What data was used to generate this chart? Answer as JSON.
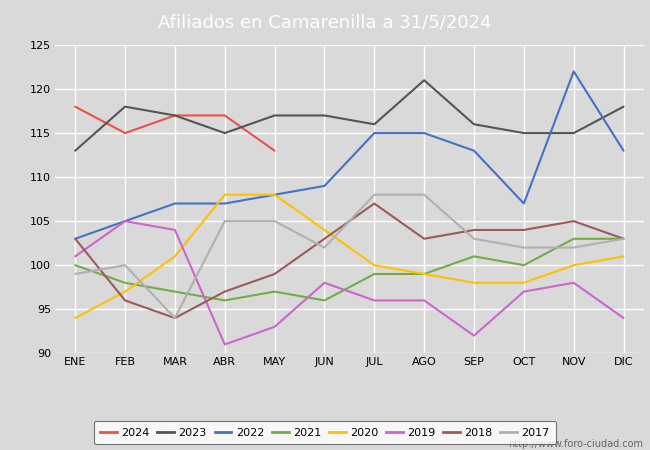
{
  "title": "Afiliados en Camarenilla a 31/5/2024",
  "title_bg_color": "#4d7ebf",
  "title_text_color": "white",
  "ylim": [
    90,
    125
  ],
  "yticks": [
    90,
    95,
    100,
    105,
    110,
    115,
    120,
    125
  ],
  "months": [
    "ENE",
    "FEB",
    "MAR",
    "ABR",
    "MAY",
    "JUN",
    "JUL",
    "AGO",
    "SEP",
    "OCT",
    "NOV",
    "DIC"
  ],
  "watermark": "http://www.foro-ciudad.com",
  "series": {
    "2024": {
      "color": "#e8534a",
      "linewidth": 1.5,
      "data": [
        118,
        115,
        117,
        117,
        113,
        null,
        null,
        null,
        null,
        null,
        null,
        null
      ]
    },
    "2023": {
      "color": "#555555",
      "linewidth": 1.5,
      "data": [
        113,
        118,
        117,
        115,
        117,
        117,
        116,
        121,
        116,
        115,
        115,
        118
      ]
    },
    "2022": {
      "color": "#4472c4",
      "linewidth": 1.5,
      "data": [
        103,
        105,
        107,
        107,
        108,
        109,
        115,
        115,
        113,
        107,
        122,
        113
      ]
    },
    "2021": {
      "color": "#70ad47",
      "linewidth": 1.5,
      "data": [
        100,
        98,
        97,
        96,
        97,
        96,
        99,
        99,
        101,
        100,
        103,
        103
      ]
    },
    "2020": {
      "color": "#ffc000",
      "linewidth": 1.5,
      "data": [
        94,
        97,
        101,
        108,
        108,
        104,
        100,
        99,
        98,
        98,
        100,
        101
      ]
    },
    "2019": {
      "color": "#cc66cc",
      "linewidth": 1.5,
      "data": [
        101,
        105,
        104,
        91,
        93,
        98,
        96,
        96,
        92,
        97,
        98,
        94
      ]
    },
    "2018": {
      "color": "#9e5a5a",
      "linewidth": 1.5,
      "data": [
        103,
        96,
        94,
        97,
        99,
        103,
        107,
        103,
        104,
        104,
        105,
        103
      ]
    },
    "2017": {
      "color": "#b0b0b0",
      "linewidth": 1.5,
      "data": [
        99,
        100,
        94,
        105,
        105,
        102,
        108,
        108,
        103,
        102,
        102,
        103
      ]
    }
  },
  "legend_order": [
    "2024",
    "2023",
    "2022",
    "2021",
    "2020",
    "2019",
    "2018",
    "2017"
  ],
  "background_color": "#d9d9d9",
  "plot_bg_color": "#d9d9d9",
  "grid_color": "white",
  "title_fontsize": 13,
  "tick_fontsize": 8,
  "watermark_fontsize": 7
}
